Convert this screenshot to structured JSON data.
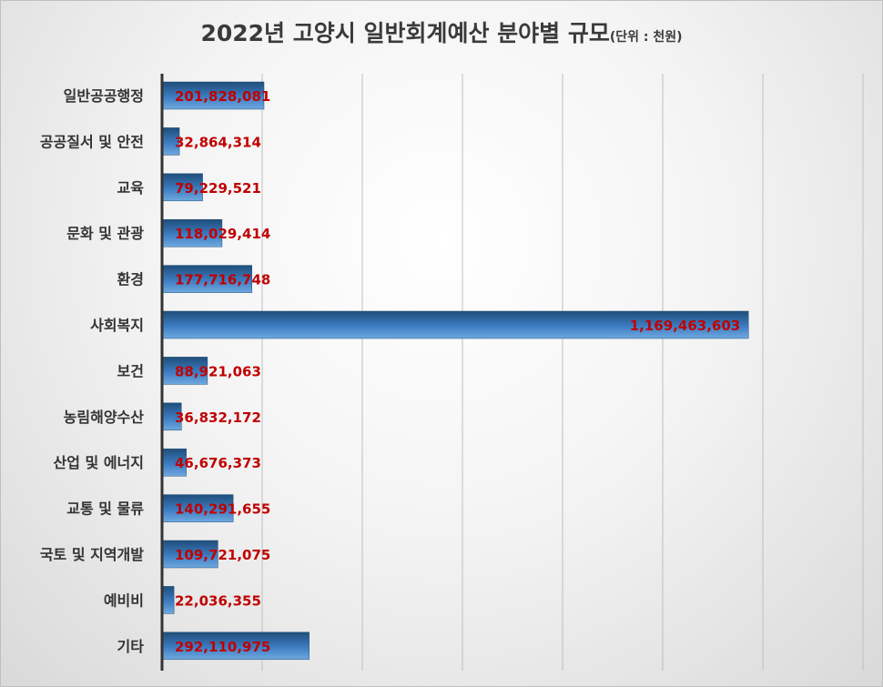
{
  "chart_data": {
    "type": "bar",
    "orientation": "horizontal",
    "title": "2022년 고양시 일반회계예산 분야별 규모",
    "subtitle": "(단위 : 천원)",
    "categories": [
      "일반공공행정",
      "공공질서 및 안전",
      "교육",
      "문화 및 관광",
      "환경",
      "사회복지",
      "보건",
      "농림해양수산",
      "산업 및 에너지",
      "교통 및 물류",
      "국토 및 지역개발",
      "예비비",
      "기타"
    ],
    "values": [
      201828081,
      32864314,
      79229521,
      118029414,
      177716748,
      1169463603,
      88921063,
      36832172,
      46676373,
      140291655,
      109721075,
      22036355,
      292110975
    ],
    "value_labels": [
      "201,828,081",
      "32,864,314",
      "79,229,521",
      "118,029,414",
      "177,716,748",
      "1,169,463,603",
      "88,921,063",
      "36,832,172",
      "46,676,373",
      "140,291,655",
      "109,721,075",
      "22,036,355",
      "292,110,975"
    ],
    "xlim": [
      0,
      1400000000
    ],
    "grid": true,
    "colors": {
      "bar_light": "#5b9bd5",
      "bar_dark": "#1f4e79",
      "value_label": "#c00000",
      "axis": "#333333",
      "grid": "#bfbfbf"
    }
  }
}
